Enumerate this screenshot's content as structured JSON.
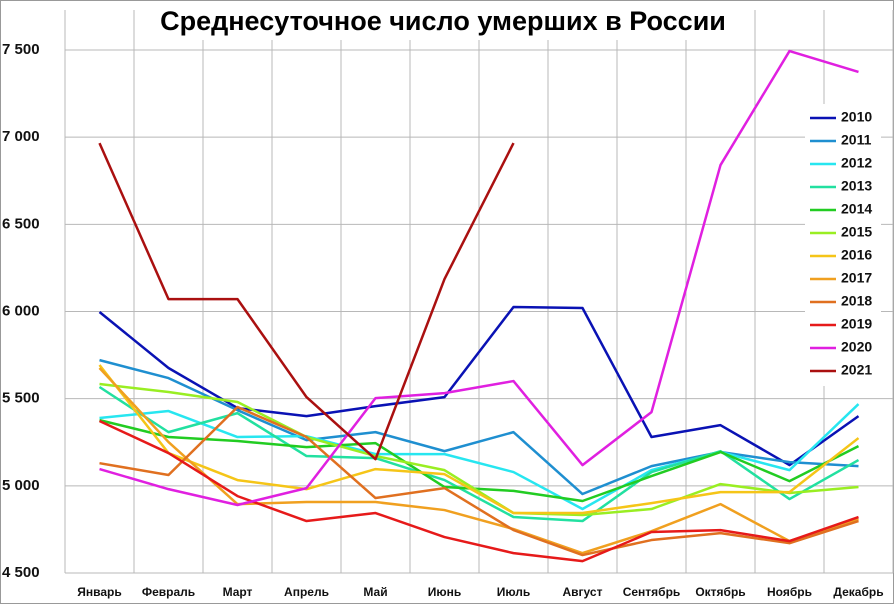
{
  "chart_data": {
    "type": "line",
    "title": "Среднесуточное число умерших в России",
    "categories": [
      "Январь",
      "Февраль",
      "Март",
      "Апрель",
      "Май",
      "Июнь",
      "Июль",
      "Август",
      "Сентябрь",
      "Октябрь",
      "Ноябрь",
      "Декабрь"
    ],
    "ylim": [
      4500,
      7500
    ],
    "yticks": [
      {
        "value": 4500,
        "label": "4 500"
      },
      {
        "value": 5000,
        "label": "5 000"
      },
      {
        "value": 5500,
        "label": "5 500"
      },
      {
        "value": 6000,
        "label": "6 000"
      },
      {
        "value": 6500,
        "label": "6 500"
      },
      {
        "value": 7000,
        "label": "7 000"
      },
      {
        "value": 7500,
        "label": "7 500"
      }
    ],
    "grid": true,
    "legend": "upper right",
    "series": [
      {
        "name": "2010",
        "color": "#0a12b4",
        "values": [
          5997,
          5676,
          5446,
          5400,
          5457,
          5509,
          6026,
          6020,
          5280,
          5348,
          5119,
          5400
        ]
      },
      {
        "name": "2011",
        "color": "#1f8fd0",
        "values": [
          5721,
          5618,
          5434,
          5262,
          5308,
          5199,
          5308,
          4953,
          5113,
          5194,
          5136,
          5113
        ]
      },
      {
        "name": "2012",
        "color": "#27e6f0",
        "values": [
          5389,
          5429,
          5280,
          5285,
          5182,
          5182,
          5079,
          4867,
          5090,
          5194,
          5090,
          5469
        ]
      },
      {
        "name": "2013",
        "color": "#22e0a0",
        "values": [
          5567,
          5308,
          5417,
          5171,
          5159,
          5033,
          4821,
          4798,
          5079,
          5199,
          4924,
          5148
        ]
      },
      {
        "name": "2014",
        "color": "#22cc22",
        "values": [
          5377,
          5280,
          5257,
          5222,
          5245,
          4993,
          4971,
          4913,
          5056,
          5194,
          5027,
          5228
        ]
      },
      {
        "name": "2015",
        "color": "#99ee22",
        "values": [
          5584,
          5538,
          5481,
          5280,
          5171,
          5090,
          4844,
          4833,
          4867,
          5010,
          4959,
          4993
        ]
      },
      {
        "name": "2016",
        "color": "#f5c518",
        "values": [
          5693,
          5188,
          5033,
          4981,
          5096,
          5067,
          4844,
          4844,
          4901,
          4964,
          4964,
          5274
        ]
      },
      {
        "name": "2017",
        "color": "#f0a020",
        "values": [
          5676,
          5251,
          4895,
          4907,
          4907,
          4861,
          4752,
          4614,
          4740,
          4895,
          4683,
          4809
        ]
      },
      {
        "name": "2018",
        "color": "#e07020",
        "values": [
          5130,
          5062,
          5452,
          5280,
          4930,
          4987,
          4746,
          4603,
          4689,
          4729,
          4671,
          4798
        ]
      },
      {
        "name": "2019",
        "color": "#e61a1a",
        "values": [
          5372,
          5188,
          4941,
          4798,
          4844,
          4706,
          4614,
          4568,
          4735,
          4746,
          4683,
          4821
        ]
      },
      {
        "name": "2020",
        "color": "#e020e0",
        "values": [
          5096,
          4981,
          4890,
          4987,
          5503,
          5532,
          5601,
          5119,
          5423,
          6840,
          7494,
          7374
        ]
      },
      {
        "name": "2021",
        "color": "#aa1010",
        "values": [
          6966,
          6071,
          6071,
          5509,
          5153,
          6186,
          6966,
          null,
          null,
          null,
          null,
          null
        ]
      }
    ]
  }
}
